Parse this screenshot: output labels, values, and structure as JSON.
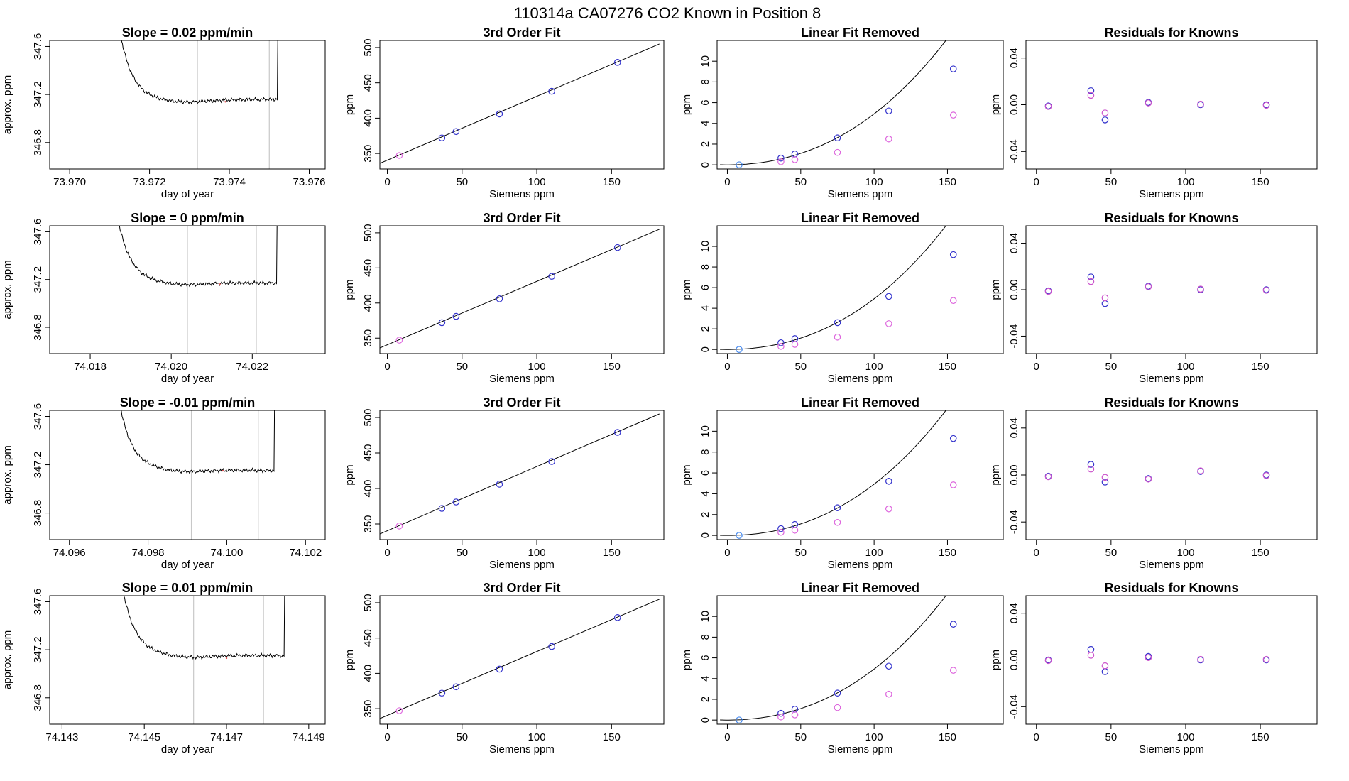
{
  "page": {
    "title": "110314a     CA07276    CO2 Known in Position  8"
  },
  "chart_data": [
    {
      "type": "line",
      "panel": "trace",
      "row": 0,
      "title": "Slope =  0.02  ppm/min",
      "xlabel": "day of year",
      "ylabel": "approx. ppm",
      "xlim": [
        73.9695,
        73.9764
      ],
      "ylim": [
        346.58,
        347.65
      ],
      "xticks": [
        "73.970",
        "73.972",
        "73.974",
        "73.976"
      ],
      "yticks": [
        "346.8",
        "347.2",
        "347.6"
      ],
      "vlines": [
        73.9732,
        73.975
      ],
      "trace": {
        "start": 73.971,
        "end": 73.9752,
        "plateau": 347.15,
        "plateau_end": 347.16,
        "sag": 347.13
      },
      "highlight": {
        "x": 73.9739,
        "y": 347.14
      }
    },
    {
      "type": "scatter",
      "panel": "fit",
      "row": 0,
      "title": "3rd Order Fit",
      "xlabel": "Siemens ppm",
      "ylabel": "ppm",
      "xlim": [
        -5,
        185
      ],
      "ylim": [
        328,
        510
      ],
      "xticks": [
        "0",
        "50",
        "100",
        "150"
      ],
      "yticks": [
        "350",
        "400",
        "450",
        "500"
      ],
      "line": {
        "x": [
          -5,
          182
        ],
        "y": [
          336,
          505
        ]
      },
      "points": [
        {
          "x": 8,
          "y": 347.1,
          "color": "#e070e0"
        },
        {
          "x": 36.5,
          "y": 372,
          "color": "#3333cc"
        },
        {
          "x": 46,
          "y": 381,
          "color": "#3333cc"
        },
        {
          "x": 75,
          "y": 406,
          "color": "#3333cc"
        },
        {
          "x": 110,
          "y": 438,
          "color": "#3333cc"
        },
        {
          "x": 154,
          "y": 479,
          "color": "#3333cc"
        }
      ]
    },
    {
      "type": "scatter",
      "panel": "linrem",
      "row": 0,
      "title": "Linear Fit Removed",
      "xlabel": "Siemens ppm",
      "ylabel": "ppm",
      "xlim": [
        -7,
        188
      ],
      "ylim": [
        -0.4,
        12
      ],
      "xticks": [
        "0",
        "50",
        "100",
        "150"
      ],
      "yticks": [
        "0",
        "2",
        "4",
        "6",
        "8",
        "10"
      ],
      "curve_coeffs": [
        0.000392,
        1e-06
      ],
      "points": [
        {
          "x": 8,
          "y": 0.0,
          "color": "#4488ee"
        },
        {
          "x": 36.5,
          "y": 0.65,
          "color": "#3333cc"
        },
        {
          "x": 46,
          "y": 1.05,
          "color": "#3333cc"
        },
        {
          "x": 75,
          "y": 2.6,
          "color": "#3333cc"
        },
        {
          "x": 110,
          "y": 5.2,
          "color": "#3333cc"
        },
        {
          "x": 154,
          "y": 9.25,
          "color": "#3333cc"
        },
        {
          "x": 36.5,
          "y": 0.3,
          "color": "#dd66dd"
        },
        {
          "x": 46,
          "y": 0.5,
          "color": "#dd66dd"
        },
        {
          "x": 75,
          "y": 1.2,
          "color": "#dd66dd"
        },
        {
          "x": 110,
          "y": 2.5,
          "color": "#dd66dd"
        },
        {
          "x": 154,
          "y": 4.8,
          "color": "#dd66dd"
        }
      ]
    },
    {
      "type": "scatter",
      "panel": "resid",
      "row": 0,
      "title": "Residuals for Knowns",
      "xlabel": "Siemens ppm",
      "ylabel": "ppm",
      "xlim": [
        -7,
        188
      ],
      "ylim": [
        -0.055,
        0.055
      ],
      "xticks": [
        "0",
        "50",
        "100",
        "150"
      ],
      "yticks": [
        "-0.04",
        "0.00",
        "0.04"
      ],
      "points": [
        {
          "x": 8,
          "y": -0.001,
          "color": "#3333cc"
        },
        {
          "x": 8,
          "y": -0.0015,
          "color": "#cc55cc"
        },
        {
          "x": 36.5,
          "y": 0.012,
          "color": "#3333cc"
        },
        {
          "x": 36.5,
          "y": 0.008,
          "color": "#cc55cc"
        },
        {
          "x": 46,
          "y": -0.013,
          "color": "#3333cc"
        },
        {
          "x": 46,
          "y": -0.007,
          "color": "#cc55cc"
        },
        {
          "x": 75,
          "y": 0.002,
          "color": "#3333cc"
        },
        {
          "x": 75,
          "y": 0.0015,
          "color": "#cc55cc"
        },
        {
          "x": 110,
          "y": 0.0,
          "color": "#3333cc"
        },
        {
          "x": 110,
          "y": 0.0005,
          "color": "#cc55cc"
        },
        {
          "x": 154,
          "y": 0.0,
          "color": "#3333cc"
        },
        {
          "x": 154,
          "y": -0.0005,
          "color": "#cc55cc"
        }
      ]
    },
    {
      "type": "line",
      "panel": "trace",
      "row": 1,
      "title": "Slope =  0  ppm/min",
      "xlabel": "day of year",
      "ylabel": "approx. ppm",
      "xlim": [
        74.017,
        74.0238
      ],
      "ylim": [
        346.58,
        347.65
      ],
      "xticks": [
        "74.018",
        "74.020",
        "74.022"
      ],
      "yticks": [
        "346.8",
        "347.2",
        "347.6"
      ],
      "vlines": [
        74.0204,
        74.0221
      ],
      "trace": {
        "start": 74.0184,
        "end": 74.0226,
        "plateau": 347.18,
        "plateau_end": 347.17,
        "sag": 347.16
      },
      "highlight": {
        "x": 74.0212,
        "y": 347.16
      }
    },
    {
      "type": "scatter",
      "panel": "fit",
      "row": 1,
      "title": "3rd Order Fit",
      "xlabel": "Siemens ppm",
      "ylabel": "ppm",
      "xlim": [
        -5,
        185
      ],
      "ylim": [
        328,
        510
      ],
      "xticks": [
        "0",
        "50",
        "100",
        "150"
      ],
      "yticks": [
        "350",
        "400",
        "450",
        "500"
      ],
      "line": {
        "x": [
          -5,
          182
        ],
        "y": [
          336,
          505
        ]
      },
      "points": [
        {
          "x": 8,
          "y": 347.1,
          "color": "#e070e0"
        },
        {
          "x": 36.5,
          "y": 372,
          "color": "#3333cc"
        },
        {
          "x": 46,
          "y": 381,
          "color": "#3333cc"
        },
        {
          "x": 75,
          "y": 406,
          "color": "#3333cc"
        },
        {
          "x": 110,
          "y": 438,
          "color": "#3333cc"
        },
        {
          "x": 154,
          "y": 479,
          "color": "#3333cc"
        }
      ]
    },
    {
      "type": "scatter",
      "panel": "linrem",
      "row": 1,
      "title": "Linear Fit Removed",
      "xlabel": "Siemens ppm",
      "ylabel": "ppm",
      "xlim": [
        -7,
        188
      ],
      "ylim": [
        -0.4,
        12
      ],
      "xticks": [
        "0",
        "50",
        "100",
        "150"
      ],
      "yticks": [
        "0",
        "2",
        "4",
        "6",
        "8",
        "10"
      ],
      "curve_coeffs": [
        0.000392,
        1e-06
      ],
      "points": [
        {
          "x": 8,
          "y": 0.0,
          "color": "#4488ee"
        },
        {
          "x": 36.5,
          "y": 0.65,
          "color": "#3333cc"
        },
        {
          "x": 46,
          "y": 1.05,
          "color": "#3333cc"
        },
        {
          "x": 75,
          "y": 2.6,
          "color": "#3333cc"
        },
        {
          "x": 110,
          "y": 5.15,
          "color": "#3333cc"
        },
        {
          "x": 154,
          "y": 9.2,
          "color": "#3333cc"
        },
        {
          "x": 36.5,
          "y": 0.3,
          "color": "#dd66dd"
        },
        {
          "x": 46,
          "y": 0.5,
          "color": "#dd66dd"
        },
        {
          "x": 75,
          "y": 1.2,
          "color": "#dd66dd"
        },
        {
          "x": 110,
          "y": 2.5,
          "color": "#dd66dd"
        },
        {
          "x": 154,
          "y": 4.75,
          "color": "#dd66dd"
        }
      ]
    },
    {
      "type": "scatter",
      "panel": "resid",
      "row": 1,
      "title": "Residuals for Knowns",
      "xlabel": "Siemens ppm",
      "ylabel": "ppm",
      "xlim": [
        -7,
        188
      ],
      "ylim": [
        -0.055,
        0.055
      ],
      "xticks": [
        "0",
        "50",
        "100",
        "150"
      ],
      "yticks": [
        "-0.04",
        "0.00",
        "0.04"
      ],
      "points": [
        {
          "x": 8,
          "y": -0.001,
          "color": "#3333cc"
        },
        {
          "x": 8,
          "y": -0.0015,
          "color": "#cc55cc"
        },
        {
          "x": 36.5,
          "y": 0.011,
          "color": "#3333cc"
        },
        {
          "x": 36.5,
          "y": 0.007,
          "color": "#cc55cc"
        },
        {
          "x": 46,
          "y": -0.012,
          "color": "#3333cc"
        },
        {
          "x": 46,
          "y": -0.007,
          "color": "#cc55cc"
        },
        {
          "x": 75,
          "y": 0.003,
          "color": "#3333cc"
        },
        {
          "x": 75,
          "y": 0.0025,
          "color": "#cc55cc"
        },
        {
          "x": 110,
          "y": 0.0,
          "color": "#3333cc"
        },
        {
          "x": 110,
          "y": 0.0005,
          "color": "#cc55cc"
        },
        {
          "x": 154,
          "y": 0.0,
          "color": "#3333cc"
        },
        {
          "x": 154,
          "y": -0.0005,
          "color": "#cc55cc"
        }
      ]
    },
    {
      "type": "line",
      "panel": "trace",
      "row": 2,
      "title": "Slope =  -0.01  ppm/min",
      "xlabel": "day of year",
      "ylabel": "approx. ppm",
      "xlim": [
        74.0955,
        74.1025
      ],
      "ylim": [
        346.58,
        347.65
      ],
      "xticks": [
        "74.096",
        "74.098",
        "74.100",
        "74.102"
      ],
      "yticks": [
        "346.8",
        "347.2",
        "347.6"
      ],
      "vlines": [
        74.0991,
        74.1008
      ],
      "trace": {
        "start": 74.097,
        "end": 74.1012,
        "plateau": 347.17,
        "plateau_end": 347.15,
        "sag": 347.15
      },
      "highlight": {
        "x": 74.0999,
        "y": 347.15
      }
    },
    {
      "type": "scatter",
      "panel": "fit",
      "row": 2,
      "title": "3rd Order Fit",
      "xlabel": "Siemens ppm",
      "ylabel": "ppm",
      "xlim": [
        -5,
        185
      ],
      "ylim": [
        328,
        510
      ],
      "xticks": [
        "0",
        "50",
        "100",
        "150"
      ],
      "yticks": [
        "350",
        "400",
        "450",
        "500"
      ],
      "line": {
        "x": [
          -5,
          182
        ],
        "y": [
          336,
          505
        ]
      },
      "points": [
        {
          "x": 8,
          "y": 347.1,
          "color": "#e070e0"
        },
        {
          "x": 36.5,
          "y": 372,
          "color": "#3333cc"
        },
        {
          "x": 46,
          "y": 381,
          "color": "#3333cc"
        },
        {
          "x": 75,
          "y": 406,
          "color": "#3333cc"
        },
        {
          "x": 110,
          "y": 438,
          "color": "#3333cc"
        },
        {
          "x": 154,
          "y": 479,
          "color": "#3333cc"
        }
      ]
    },
    {
      "type": "scatter",
      "panel": "linrem",
      "row": 2,
      "title": "Linear Fit Removed",
      "xlabel": "Siemens ppm",
      "ylabel": "ppm",
      "xlim": [
        -7,
        188
      ],
      "ylim": [
        -0.4,
        12
      ],
      "xticks": [
        "0",
        "50",
        "100",
        "150"
      ],
      "yticks": [
        "0",
        "2",
        "4",
        "6",
        "8",
        "10"
      ],
      "curve_coeffs": [
        0.000392,
        1e-06
      ],
      "points": [
        {
          "x": 8,
          "y": 0.0,
          "color": "#4488ee"
        },
        {
          "x": 36.5,
          "y": 0.65,
          "color": "#3333cc"
        },
        {
          "x": 46,
          "y": 1.05,
          "color": "#3333cc"
        },
        {
          "x": 75,
          "y": 2.65,
          "color": "#3333cc"
        },
        {
          "x": 110,
          "y": 5.2,
          "color": "#3333cc"
        },
        {
          "x": 154,
          "y": 9.3,
          "color": "#3333cc"
        },
        {
          "x": 36.5,
          "y": 0.3,
          "color": "#dd66dd"
        },
        {
          "x": 46,
          "y": 0.5,
          "color": "#dd66dd"
        },
        {
          "x": 75,
          "y": 1.25,
          "color": "#dd66dd"
        },
        {
          "x": 110,
          "y": 2.55,
          "color": "#dd66dd"
        },
        {
          "x": 154,
          "y": 4.85,
          "color": "#dd66dd"
        }
      ]
    },
    {
      "type": "scatter",
      "panel": "resid",
      "row": 2,
      "title": "Residuals for Knowns",
      "xlabel": "Siemens ppm",
      "ylabel": "ppm",
      "xlim": [
        -7,
        188
      ],
      "ylim": [
        -0.055,
        0.055
      ],
      "xticks": [
        "0",
        "50",
        "100",
        "150"
      ],
      "yticks": [
        "-0.04",
        "0.00",
        "0.04"
      ],
      "points": [
        {
          "x": 8,
          "y": -0.001,
          "color": "#3333cc"
        },
        {
          "x": 8,
          "y": -0.0015,
          "color": "#cc55cc"
        },
        {
          "x": 36.5,
          "y": 0.009,
          "color": "#3333cc"
        },
        {
          "x": 36.5,
          "y": 0.005,
          "color": "#cc55cc"
        },
        {
          "x": 46,
          "y": -0.006,
          "color": "#3333cc"
        },
        {
          "x": 46,
          "y": -0.002,
          "color": "#cc55cc"
        },
        {
          "x": 75,
          "y": -0.003,
          "color": "#3333cc"
        },
        {
          "x": 75,
          "y": -0.0035,
          "color": "#cc55cc"
        },
        {
          "x": 110,
          "y": 0.003,
          "color": "#3333cc"
        },
        {
          "x": 110,
          "y": 0.0035,
          "color": "#cc55cc"
        },
        {
          "x": 154,
          "y": 0.0,
          "color": "#3333cc"
        },
        {
          "x": 154,
          "y": -0.0005,
          "color": "#cc55cc"
        }
      ]
    },
    {
      "type": "line",
      "panel": "trace",
      "row": 3,
      "title": "Slope =  0.01  ppm/min",
      "xlabel": "day of year",
      "ylabel": "approx. ppm",
      "xlim": [
        74.1427,
        74.1494
      ],
      "ylim": [
        346.58,
        347.65
      ],
      "xticks": [
        "74.143",
        "74.145",
        "74.147",
        "74.149"
      ],
      "yticks": [
        "346.8",
        "347.2",
        "347.6"
      ],
      "vlines": [
        74.1462,
        74.1479
      ],
      "trace": {
        "start": 74.1442,
        "end": 74.1484,
        "plateau": 347.16,
        "plateau_end": 347.15,
        "sag": 347.14
      },
      "highlight": {
        "x": 74.147,
        "y": 347.13
      }
    },
    {
      "type": "scatter",
      "panel": "fit",
      "row": 3,
      "title": "3rd Order Fit",
      "xlabel": "Siemens ppm",
      "ylabel": "ppm",
      "xlim": [
        -5,
        185
      ],
      "ylim": [
        328,
        510
      ],
      "xticks": [
        "0",
        "50",
        "100",
        "150"
      ],
      "yticks": [
        "350",
        "400",
        "450",
        "500"
      ],
      "line": {
        "x": [
          -5,
          182
        ],
        "y": [
          336,
          505
        ]
      },
      "points": [
        {
          "x": 8,
          "y": 347.1,
          "color": "#e070e0"
        },
        {
          "x": 36.5,
          "y": 372,
          "color": "#3333cc"
        },
        {
          "x": 46,
          "y": 381,
          "color": "#3333cc"
        },
        {
          "x": 75,
          "y": 406,
          "color": "#3333cc"
        },
        {
          "x": 110,
          "y": 438,
          "color": "#3333cc"
        },
        {
          "x": 154,
          "y": 479,
          "color": "#3333cc"
        }
      ]
    },
    {
      "type": "scatter",
      "panel": "linrem",
      "row": 3,
      "title": "Linear Fit Removed",
      "xlabel": "Siemens ppm",
      "ylabel": "ppm",
      "xlim": [
        -7,
        188
      ],
      "ylim": [
        -0.4,
        12
      ],
      "xticks": [
        "0",
        "50",
        "100",
        "150"
      ],
      "yticks": [
        "0",
        "2",
        "4",
        "6",
        "8",
        "10"
      ],
      "curve_coeffs": [
        0.000392,
        1e-06
      ],
      "points": [
        {
          "x": 8,
          "y": 0.0,
          "color": "#4488ee"
        },
        {
          "x": 36.5,
          "y": 0.65,
          "color": "#3333cc"
        },
        {
          "x": 46,
          "y": 1.05,
          "color": "#3333cc"
        },
        {
          "x": 75,
          "y": 2.6,
          "color": "#3333cc"
        },
        {
          "x": 110,
          "y": 5.2,
          "color": "#3333cc"
        },
        {
          "x": 154,
          "y": 9.25,
          "color": "#3333cc"
        },
        {
          "x": 36.5,
          "y": 0.3,
          "color": "#dd66dd"
        },
        {
          "x": 46,
          "y": 0.5,
          "color": "#dd66dd"
        },
        {
          "x": 75,
          "y": 1.2,
          "color": "#dd66dd"
        },
        {
          "x": 110,
          "y": 2.5,
          "color": "#dd66dd"
        },
        {
          "x": 154,
          "y": 4.8,
          "color": "#dd66dd"
        }
      ]
    },
    {
      "type": "scatter",
      "panel": "resid",
      "row": 3,
      "title": "Residuals for Knowns",
      "xlabel": "Siemens ppm",
      "ylabel": "ppm",
      "xlim": [
        -7,
        188
      ],
      "ylim": [
        -0.055,
        0.055
      ],
      "xticks": [
        "0",
        "50",
        "100",
        "150"
      ],
      "yticks": [
        "-0.04",
        "0.00",
        "0.04"
      ],
      "points": [
        {
          "x": 8,
          "y": 0.0,
          "color": "#3333cc"
        },
        {
          "x": 8,
          "y": -0.0005,
          "color": "#cc55cc"
        },
        {
          "x": 36.5,
          "y": 0.009,
          "color": "#3333cc"
        },
        {
          "x": 36.5,
          "y": 0.004,
          "color": "#cc55cc"
        },
        {
          "x": 46,
          "y": -0.01,
          "color": "#3333cc"
        },
        {
          "x": 46,
          "y": -0.005,
          "color": "#cc55cc"
        },
        {
          "x": 75,
          "y": 0.003,
          "color": "#3333cc"
        },
        {
          "x": 75,
          "y": 0.002,
          "color": "#cc55cc"
        },
        {
          "x": 110,
          "y": 0.0,
          "color": "#3333cc"
        },
        {
          "x": 110,
          "y": 0.0005,
          "color": "#cc55cc"
        },
        {
          "x": 154,
          "y": 0.0,
          "color": "#3333cc"
        },
        {
          "x": 154,
          "y": 0.0005,
          "color": "#cc55cc"
        }
      ]
    }
  ]
}
